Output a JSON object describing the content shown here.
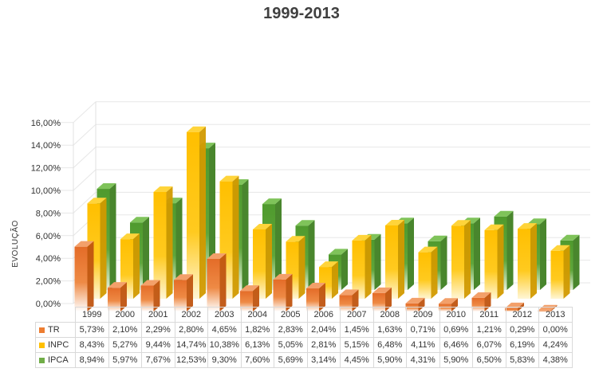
{
  "chart_data": {
    "type": "bar",
    "title": "1999-2013",
    "ylabel": "EVOLUÇÃO",
    "xlabel": "",
    "ylim": [
      0,
      16
    ],
    "yticks": [
      0,
      2,
      4,
      6,
      8,
      10,
      12,
      14,
      16
    ],
    "ytick_labels": [
      "0,00%",
      "2,00%",
      "4,00%",
      "6,00%",
      "8,00%",
      "10,00%",
      "12,00%",
      "14,00%",
      "16,00%"
    ],
    "grid": true,
    "style": "3d-clustered-bar-with-data-table",
    "categories": [
      "1999",
      "2000",
      "2001",
      "2002",
      "2003",
      "2004",
      "2005",
      "2006",
      "2007",
      "2008",
      "2009",
      "2010",
      "2011",
      "2012",
      "2013"
    ],
    "series": [
      {
        "name": "TR",
        "color": "#ed7d31",
        "values": [
          5.73,
          2.1,
          2.29,
          2.8,
          4.65,
          1.82,
          2.83,
          2.04,
          1.45,
          1.63,
          0.71,
          0.69,
          1.21,
          0.29,
          0.0
        ],
        "labels": [
          "5,73%",
          "2,10%",
          "2,29%",
          "2,80%",
          "4,65%",
          "1,82%",
          "2,83%",
          "2,04%",
          "1,45%",
          "1,63%",
          "0,71%",
          "0,69%",
          "1,21%",
          "0,29%",
          "0,00%"
        ]
      },
      {
        "name": "INPC",
        "color": "#ffc000",
        "values": [
          8.43,
          5.27,
          9.44,
          14.74,
          10.38,
          6.13,
          5.05,
          2.81,
          5.15,
          6.48,
          4.11,
          6.46,
          6.07,
          6.19,
          4.24
        ],
        "labels": [
          "8,43%",
          "5,27%",
          "9,44%",
          "14,74%",
          "10,38%",
          "6,13%",
          "5,05%",
          "2,81%",
          "5,15%",
          "6,48%",
          "4,11%",
          "6,46%",
          "6,07%",
          "6,19%",
          "4,24%"
        ]
      },
      {
        "name": "IPCA",
        "color": "#70ad47",
        "values": [
          8.94,
          5.97,
          7.67,
          12.53,
          9.3,
          7.6,
          5.69,
          3.14,
          4.45,
          5.9,
          4.31,
          5.9,
          6.5,
          5.83,
          4.38
        ],
        "labels": [
          "8,94%",
          "5,97%",
          "7,67%",
          "12,53%",
          "9,30%",
          "7,60%",
          "5,69%",
          "3,14%",
          "4,45%",
          "5,90%",
          "4,31%",
          "5,90%",
          "6,50%",
          "5,83%",
          "4,38%"
        ]
      }
    ]
  }
}
